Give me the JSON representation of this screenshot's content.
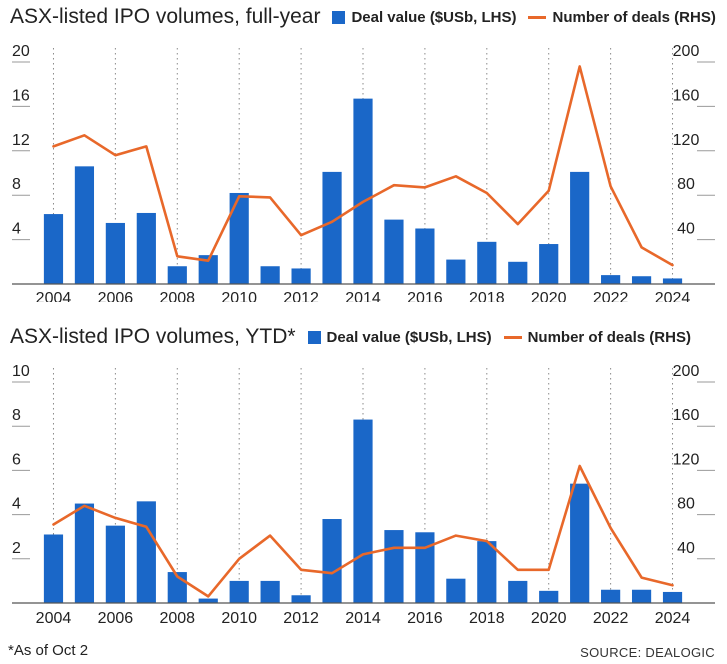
{
  "chart_data": [
    {
      "type": "bar+line",
      "title": "ASX-listed IPO volumes, full-year",
      "categories": [
        "2004",
        "2005",
        "2006",
        "2007",
        "2008",
        "2009",
        "2010",
        "2011",
        "2012",
        "2013",
        "2014",
        "2015",
        "2016",
        "2017",
        "2018",
        "2019",
        "2020",
        "2021",
        "2022",
        "2023",
        "2024"
      ],
      "x_tick_labels": [
        "2004",
        "2006",
        "2008",
        "2010",
        "2012",
        "2014",
        "2016",
        "2018",
        "2020",
        "2022",
        "2024"
      ],
      "left_ticks": [
        "4",
        "8",
        "12",
        "16",
        "20"
      ],
      "right_ticks": [
        "40",
        "80",
        "120",
        "160",
        "200"
      ],
      "ylim_left": [
        0,
        20
      ],
      "ylim_right": [
        0,
        200
      ],
      "series": [
        {
          "name": "Deal value ($USb, LHS)",
          "type": "bar",
          "axis": "left",
          "color": "#1a67c8",
          "values": [
            6.3,
            10.6,
            5.5,
            6.4,
            1.6,
            2.6,
            8.2,
            1.6,
            1.4,
            10.1,
            16.7,
            5.8,
            5.0,
            2.2,
            3.8,
            2.0,
            3.6,
            10.1,
            0.8,
            0.7,
            0.5
          ]
        },
        {
          "name": "Number of deals (RHS)",
          "type": "line",
          "axis": "right",
          "color": "#e8682a",
          "values": [
            124,
            134,
            116,
            124,
            25,
            21,
            79,
            78,
            44,
            56,
            74,
            89,
            87,
            97,
            82,
            54,
            84,
            196,
            88,
            33,
            17
          ]
        }
      ],
      "grid": "vertical dotted"
    },
    {
      "type": "bar+line",
      "title": "ASX-listed IPO volumes, YTD*",
      "categories": [
        "2004",
        "2005",
        "2006",
        "2007",
        "2008",
        "2009",
        "2010",
        "2011",
        "2012",
        "2013",
        "2014",
        "2015",
        "2016",
        "2017",
        "2018",
        "2019",
        "2020",
        "2021",
        "2022",
        "2023",
        "2024"
      ],
      "x_tick_labels": [
        "2004",
        "2006",
        "2008",
        "2010",
        "2012",
        "2014",
        "2016",
        "2018",
        "2020",
        "2022",
        "2024"
      ],
      "left_ticks": [
        "2",
        "4",
        "6",
        "8",
        "10"
      ],
      "right_ticks": [
        "40",
        "80",
        "120",
        "160",
        "200"
      ],
      "ylim_left": [
        0,
        10
      ],
      "ylim_right": [
        0,
        200
      ],
      "series": [
        {
          "name": "Deal value ($USb, LHS)",
          "type": "bar",
          "axis": "left",
          "color": "#1a67c8",
          "values": [
            3.1,
            4.5,
            3.5,
            4.6,
            1.4,
            0.2,
            1.0,
            1.0,
            0.35,
            3.8,
            8.3,
            3.3,
            3.2,
            1.1,
            2.8,
            1.0,
            0.55,
            5.4,
            0.6,
            0.6,
            0.5
          ]
        },
        {
          "name": "Number of deals (RHS)",
          "type": "line",
          "axis": "right",
          "color": "#e8682a",
          "values": [
            71,
            88,
            77,
            69,
            24,
            6,
            40,
            61,
            30,
            27,
            44,
            50,
            50,
            61,
            56,
            30,
            30,
            124,
            68,
            23,
            16
          ]
        }
      ],
      "grid": "vertical dotted"
    }
  ],
  "footnote": "*As of Oct 2",
  "source": "SOURCE: DEALOGIC"
}
